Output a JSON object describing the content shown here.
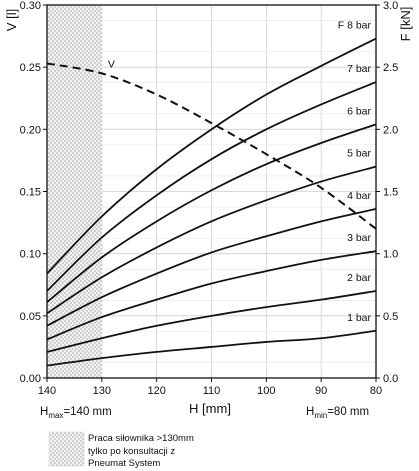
{
  "chart_data": {
    "type": "line",
    "x_axis": {
      "label": "H [mm]",
      "range": [
        140,
        80
      ],
      "reversed": true,
      "ticks": [
        "140",
        "130",
        "120",
        "110",
        "100",
        "90",
        "80"
      ]
    },
    "y_axis_left": {
      "label": "V [l]",
      "range": [
        0,
        0.3
      ],
      "ticks": [
        "0.00",
        "0.05",
        "0.10",
        "0.15",
        "0.20",
        "0.25",
        "0.30"
      ]
    },
    "y_axis_right": {
      "label": "F [kN]",
      "range": [
        0,
        3
      ],
      "ticks": [
        "0.0",
        "0.5",
        "1.0",
        "1.5",
        "2.0",
        "2.5",
        "3.0"
      ]
    },
    "grid": true,
    "h_max_label": {
      "base": "H",
      "sub": "max",
      "text": "=140 mm"
    },
    "h_min_label": {
      "base": "H",
      "sub": "min",
      "text": "=80 mm"
    },
    "shaded_region": {
      "x_from": 140,
      "x_to": 130
    },
    "legend_note": "Praca siłownika >130mm\ntylko po konsultacji z\nPneumat System",
    "x": [
      140,
      130,
      120,
      110,
      100,
      90,
      80
    ],
    "series": [
      {
        "name": "V",
        "axis": "left",
        "style": "dashed",
        "values": [
          0.253,
          0.245,
          0.228,
          0.205,
          0.18,
          0.153,
          0.12
        ]
      },
      {
        "name": "F 8 bar",
        "axis": "right",
        "style": "solid",
        "values": [
          0.84,
          1.3,
          1.68,
          2.0,
          2.28,
          2.51,
          2.73
        ]
      },
      {
        "name": "7 bar",
        "axis": "right",
        "style": "solid",
        "values": [
          0.7,
          1.13,
          1.47,
          1.76,
          2.0,
          2.2,
          2.38
        ]
      },
      {
        "name": "6 bar",
        "axis": "right",
        "style": "solid",
        "values": [
          0.61,
          0.97,
          1.26,
          1.51,
          1.72,
          1.89,
          2.04
        ]
      },
      {
        "name": "5 bar",
        "axis": "right",
        "style": "solid",
        "values": [
          0.52,
          0.81,
          1.05,
          1.26,
          1.43,
          1.58,
          1.7
        ]
      },
      {
        "name": "4 bar",
        "axis": "right",
        "style": "solid",
        "values": [
          0.42,
          0.65,
          0.84,
          1.01,
          1.14,
          1.26,
          1.36
        ]
      },
      {
        "name": "3 bar",
        "axis": "right",
        "style": "solid",
        "values": [
          0.31,
          0.49,
          0.63,
          0.76,
          0.86,
          0.95,
          1.02
        ]
      },
      {
        "name": "2 bar",
        "axis": "right",
        "style": "solid",
        "values": [
          0.21,
          0.32,
          0.42,
          0.5,
          0.57,
          0.63,
          0.7
        ]
      },
      {
        "name": "1 bar",
        "axis": "right",
        "style": "solid",
        "values": [
          0.1,
          0.16,
          0.21,
          0.25,
          0.29,
          0.32,
          0.38
        ]
      }
    ]
  }
}
